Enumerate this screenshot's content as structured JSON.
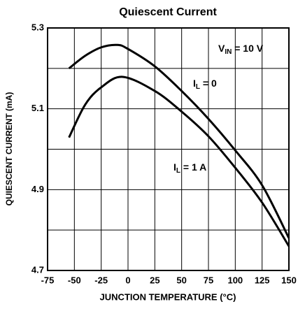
{
  "chart_data": {
    "type": "line",
    "title": "Quiescent Current",
    "x_label": "JUNCTION TEMPERATURE (°C)",
    "y_label": "QUIESCENT CURRENT (mA)",
    "xlim": [
      -75,
      150
    ],
    "xticks": [
      -75,
      -50,
      -25,
      0,
      25,
      50,
      75,
      100,
      125,
      150
    ],
    "ylim": [
      4.7,
      5.3
    ],
    "yticks": [
      4.7,
      4.9,
      5.1,
      5.3
    ],
    "ygrid": [
      4.7,
      4.8,
      4.9,
      5.0,
      5.1,
      5.2,
      5.3
    ],
    "grid": true,
    "color": "#000000",
    "annotations": [
      {
        "main": "V",
        "sub": "IN",
        "rest": " = 10 V"
      }
    ],
    "series": [
      {
        "label": {
          "main": "I",
          "sub": "L",
          "rest": " = 0"
        },
        "color": "#000000",
        "x": [
          -55,
          -40,
          -25,
          -10,
          0,
          25,
          50,
          75,
          100,
          125,
          150
        ],
        "values": [
          5.2,
          5.231,
          5.252,
          5.258,
          5.248,
          5.205,
          5.144,
          5.075,
          4.997,
          4.911,
          4.78
        ]
      },
      {
        "label": {
          "main": "I",
          "sub": "L",
          "rest": " = 1 A"
        },
        "color": "#000000",
        "x": [
          -55,
          -40,
          -25,
          -5,
          25,
          50,
          75,
          100,
          125,
          150
        ],
        "values": [
          5.029,
          5.11,
          5.153,
          5.179,
          5.144,
          5.093,
          5.032,
          4.954,
          4.868,
          4.76
        ]
      }
    ]
  }
}
